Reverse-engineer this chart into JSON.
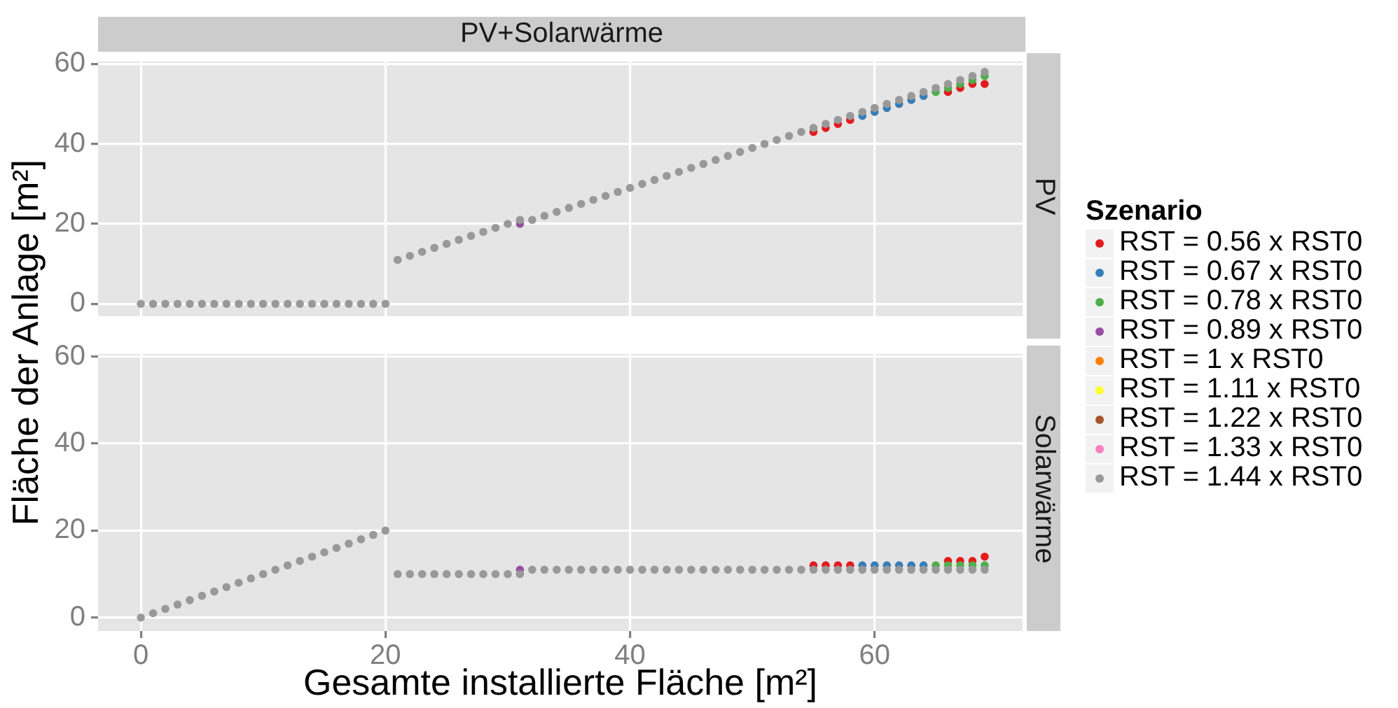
{
  "chart_data": [
    {
      "type": "scatter",
      "title": "PV+Solarwärme",
      "ylabel": "Fläche der Anlage [m²]",
      "y2label": "PV",
      "legend": "right",
      "legend_title": "Szenario",
      "tick_labels": "y",
      "marker": "circle",
      "grid": true,
      "x": [
        0,
        1,
        2,
        3,
        4,
        5,
        6,
        7,
        8,
        9,
        10,
        11,
        12,
        13,
        14,
        15,
        16,
        17,
        18,
        19,
        20,
        21,
        22,
        23,
        24,
        25,
        26,
        27,
        28,
        29,
        30,
        31,
        32,
        33,
        34,
        35,
        36,
        37,
        38,
        39,
        40,
        41,
        42,
        43,
        44,
        45,
        46,
        47,
        48,
        49,
        50,
        51,
        52,
        53,
        54,
        55,
        56,
        57,
        58,
        59,
        60,
        61,
        62,
        63,
        64,
        65,
        66,
        67,
        68,
        69
      ],
      "xlim": [
        -3.5,
        72.1
      ],
      "xticks": [
        0,
        20,
        40,
        60
      ],
      "ylim": [
        -3.1,
        60.6
      ],
      "yticks": [
        0,
        20,
        40,
        60
      ],
      "series": [
        {
          "name": "RST = 0.56 x RST0",
          "color": "#e41a1c",
          "x": [
            55,
            56,
            57,
            58,
            66,
            67,
            68,
            69
          ],
          "values": [
            43,
            44,
            45,
            46,
            53,
            54,
            55,
            55
          ]
        },
        {
          "name": "RST = 0.67 x RST0",
          "color": "#377eb8",
          "x": [
            59,
            60,
            61,
            62,
            63,
            64
          ],
          "values": [
            47,
            48,
            49,
            50,
            51,
            52
          ]
        },
        {
          "name": "RST = 0.78 x RST0",
          "color": "#4daf4a",
          "x": [
            65,
            66,
            67,
            68,
            69
          ],
          "values": [
            53,
            54,
            55,
            56,
            57
          ]
        },
        {
          "name": "RST = 0.89 x RST0",
          "color": "#984ea3",
          "x": [
            31
          ],
          "values": [
            20
          ]
        },
        {
          "name": "RST = 1 x RST0",
          "color": "#ff7f00",
          "values": [
            null,
            null,
            null,
            null,
            null,
            null,
            null,
            null,
            null,
            null,
            null,
            null,
            null,
            null,
            null,
            null,
            null,
            null,
            null,
            null,
            null,
            null,
            null,
            null,
            null,
            null,
            null,
            null,
            null,
            null,
            null,
            null,
            null,
            null,
            null,
            null,
            null,
            null,
            null,
            null,
            null,
            null,
            null,
            null,
            null,
            null,
            null,
            null,
            null,
            null,
            null,
            null,
            null,
            null,
            null,
            null,
            null,
            null,
            null,
            null,
            null,
            null,
            null,
            null,
            null,
            null,
            null,
            null,
            null,
            null
          ]
        },
        {
          "name": "RST = 1.11 x RST0",
          "color": "#ffff33",
          "values": [
            null,
            null,
            null,
            null,
            null,
            null,
            null,
            null,
            null,
            null,
            null,
            null,
            null,
            null,
            null,
            null,
            null,
            null,
            null,
            null,
            null,
            null,
            null,
            null,
            null,
            null,
            null,
            null,
            null,
            null,
            null,
            null,
            null,
            null,
            null,
            null,
            null,
            null,
            null,
            null,
            null,
            null,
            null,
            null,
            null,
            null,
            null,
            null,
            null,
            null,
            null,
            null,
            null,
            null,
            null,
            null,
            null,
            null,
            null,
            null,
            null,
            null,
            null,
            null,
            null,
            null,
            null,
            null,
            null,
            null
          ]
        },
        {
          "name": "RST = 1.22 x RST0",
          "color": "#a65628",
          "values": [
            null,
            null,
            null,
            null,
            null,
            null,
            null,
            null,
            null,
            null,
            null,
            null,
            null,
            null,
            null,
            null,
            null,
            null,
            null,
            null,
            null,
            null,
            null,
            null,
            null,
            null,
            null,
            null,
            null,
            null,
            null,
            null,
            null,
            null,
            null,
            null,
            null,
            null,
            null,
            null,
            null,
            null,
            null,
            null,
            null,
            null,
            null,
            null,
            null,
            null,
            null,
            null,
            null,
            null,
            null,
            null,
            null,
            null,
            null,
            null,
            null,
            null,
            null,
            null,
            null,
            null,
            null,
            null,
            null,
            null
          ]
        },
        {
          "name": "RST = 1.33 x RST0",
          "color": "#f781bf",
          "values": [
            null,
            null,
            null,
            null,
            null,
            null,
            null,
            null,
            null,
            null,
            null,
            null,
            null,
            null,
            null,
            null,
            null,
            null,
            null,
            null,
            null,
            null,
            null,
            null,
            null,
            null,
            null,
            null,
            null,
            null,
            null,
            null,
            null,
            null,
            null,
            null,
            null,
            null,
            null,
            null,
            null,
            null,
            null,
            null,
            null,
            null,
            null,
            null,
            null,
            null,
            null,
            null,
            null,
            null,
            null,
            null,
            null,
            null,
            null,
            null,
            null,
            null,
            null,
            null,
            null,
            null,
            null,
            null,
            null,
            null
          ]
        },
        {
          "name": "RST = 1.44 x RST0",
          "color": "#999999",
          "values": [
            0,
            0,
            0,
            0,
            0,
            0,
            0,
            0,
            0,
            0,
            0,
            0,
            0,
            0,
            0,
            0,
            0,
            0,
            0,
            0,
            0,
            11,
            12,
            13,
            14,
            15,
            16,
            17,
            18,
            19,
            20,
            21,
            21,
            22,
            23,
            24,
            25,
            26,
            27,
            28,
            29,
            30,
            31,
            32,
            33,
            34,
            35,
            36,
            37,
            38,
            39,
            40,
            41,
            42,
            43,
            44,
            45,
            46,
            47,
            48,
            49,
            50,
            51,
            52,
            53,
            54,
            55,
            56,
            57,
            58
          ]
        }
      ]
    },
    {
      "type": "scatter",
      "xlabel": "Gesamte installierte Fläche [m²]",
      "y2label": "Solarwärme",
      "marker": "circle",
      "grid": true,
      "x": [
        0,
        1,
        2,
        3,
        4,
        5,
        6,
        7,
        8,
        9,
        10,
        11,
        12,
        13,
        14,
        15,
        16,
        17,
        18,
        19,
        20,
        21,
        22,
        23,
        24,
        25,
        26,
        27,
        28,
        29,
        30,
        31,
        32,
        33,
        34,
        35,
        36,
        37,
        38,
        39,
        40,
        41,
        42,
        43,
        44,
        45,
        46,
        47,
        48,
        49,
        50,
        51,
        52,
        53,
        54,
        55,
        56,
        57,
        58,
        59,
        60,
        61,
        62,
        63,
        64,
        65,
        66,
        67,
        68,
        69
      ],
      "xlim": [
        -3.5,
        72.1
      ],
      "xticks": [
        0,
        20,
        40,
        60
      ],
      "ylim": [
        -3.1,
        60.6
      ],
      "yticks": [
        0,
        20,
        40,
        60
      ],
      "series": [
        {
          "color": "#e41a1c",
          "x": [
            55,
            56,
            57,
            58,
            66,
            67,
            68,
            69
          ],
          "values": [
            12,
            12,
            12,
            12,
            13,
            13,
            13,
            14
          ]
        },
        {
          "color": "#377eb8",
          "x": [
            59,
            60,
            61,
            62,
            63,
            64
          ],
          "values": [
            12,
            12,
            12,
            12,
            12,
            12
          ]
        },
        {
          "color": "#4daf4a",
          "x": [
            65,
            66,
            67,
            68,
            69
          ],
          "values": [
            12,
            12,
            12,
            12,
            12
          ]
        },
        {
          "color": "#984ea3",
          "x": [
            31
          ],
          "values": [
            11
          ]
        },
        {
          "color": "#999999",
          "values": [
            0,
            1,
            2,
            3,
            4,
            5,
            6,
            7,
            8,
            9,
            10,
            11,
            12,
            13,
            14,
            15,
            16,
            17,
            18,
            19,
            20,
            10,
            10,
            10,
            10,
            10,
            10,
            10,
            10,
            10,
            10,
            10,
            11,
            11,
            11,
            11,
            11,
            11,
            11,
            11,
            11,
            11,
            11,
            11,
            11,
            11,
            11,
            11,
            11,
            11,
            11,
            11,
            11,
            11,
            11,
            11,
            11,
            11,
            11,
            11,
            11,
            11,
            11,
            11,
            11,
            11,
            11,
            11,
            11,
            11
          ]
        }
      ]
    }
  ]
}
